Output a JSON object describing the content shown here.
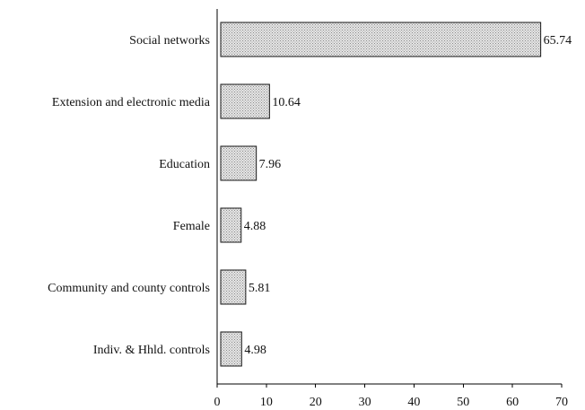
{
  "chart_data": {
    "type": "bar",
    "orientation": "horizontal",
    "categories": [
      "Social networks",
      "Extension and electronic media",
      "Education",
      "Female",
      "Community and county controls",
      "Indiv. & Hhld. controls"
    ],
    "values": [
      65.74,
      10.64,
      7.96,
      4.88,
      5.81,
      4.98
    ],
    "value_labels": [
      "65.74",
      "10.64",
      "7.96",
      "4.88",
      "5.81",
      "4.98"
    ],
    "xlim": [
      0,
      70
    ],
    "xticks": [
      "0",
      "10",
      "20",
      "30",
      "40",
      "50",
      "60",
      "70"
    ],
    "title": "",
    "xlabel": "",
    "ylabel": "",
    "grid": false,
    "legend": "none",
    "bar_fill": "dotted-gray"
  }
}
